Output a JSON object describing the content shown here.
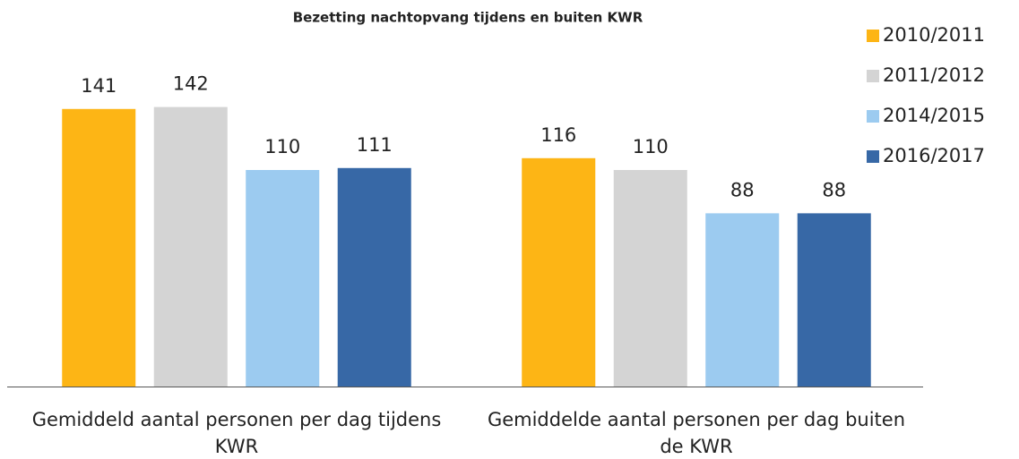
{
  "chart_data": {
    "type": "bar",
    "title": "Bezetting nachtopvang tijdens en buiten KWR",
    "categories": [
      "Gemiddeld aantal personen per dag tijdens KWR",
      "Gemiddelde aantal personen per dag buiten de KWR"
    ],
    "series": [
      {
        "name": "2010/2011",
        "color": "#fdb515",
        "values": [
          141,
          116
        ]
      },
      {
        "name": "2011/2012",
        "color": "#d4d4d4",
        "values": [
          142,
          110
        ]
      },
      {
        "name": "2014/2015",
        "color": "#9ccbf0",
        "values": [
          110,
          88
        ]
      },
      {
        "name": "2016/2017",
        "color": "#3768a6",
        "values": [
          111,
          88
        ]
      }
    ],
    "ylim": [
      0,
      150
    ]
  }
}
